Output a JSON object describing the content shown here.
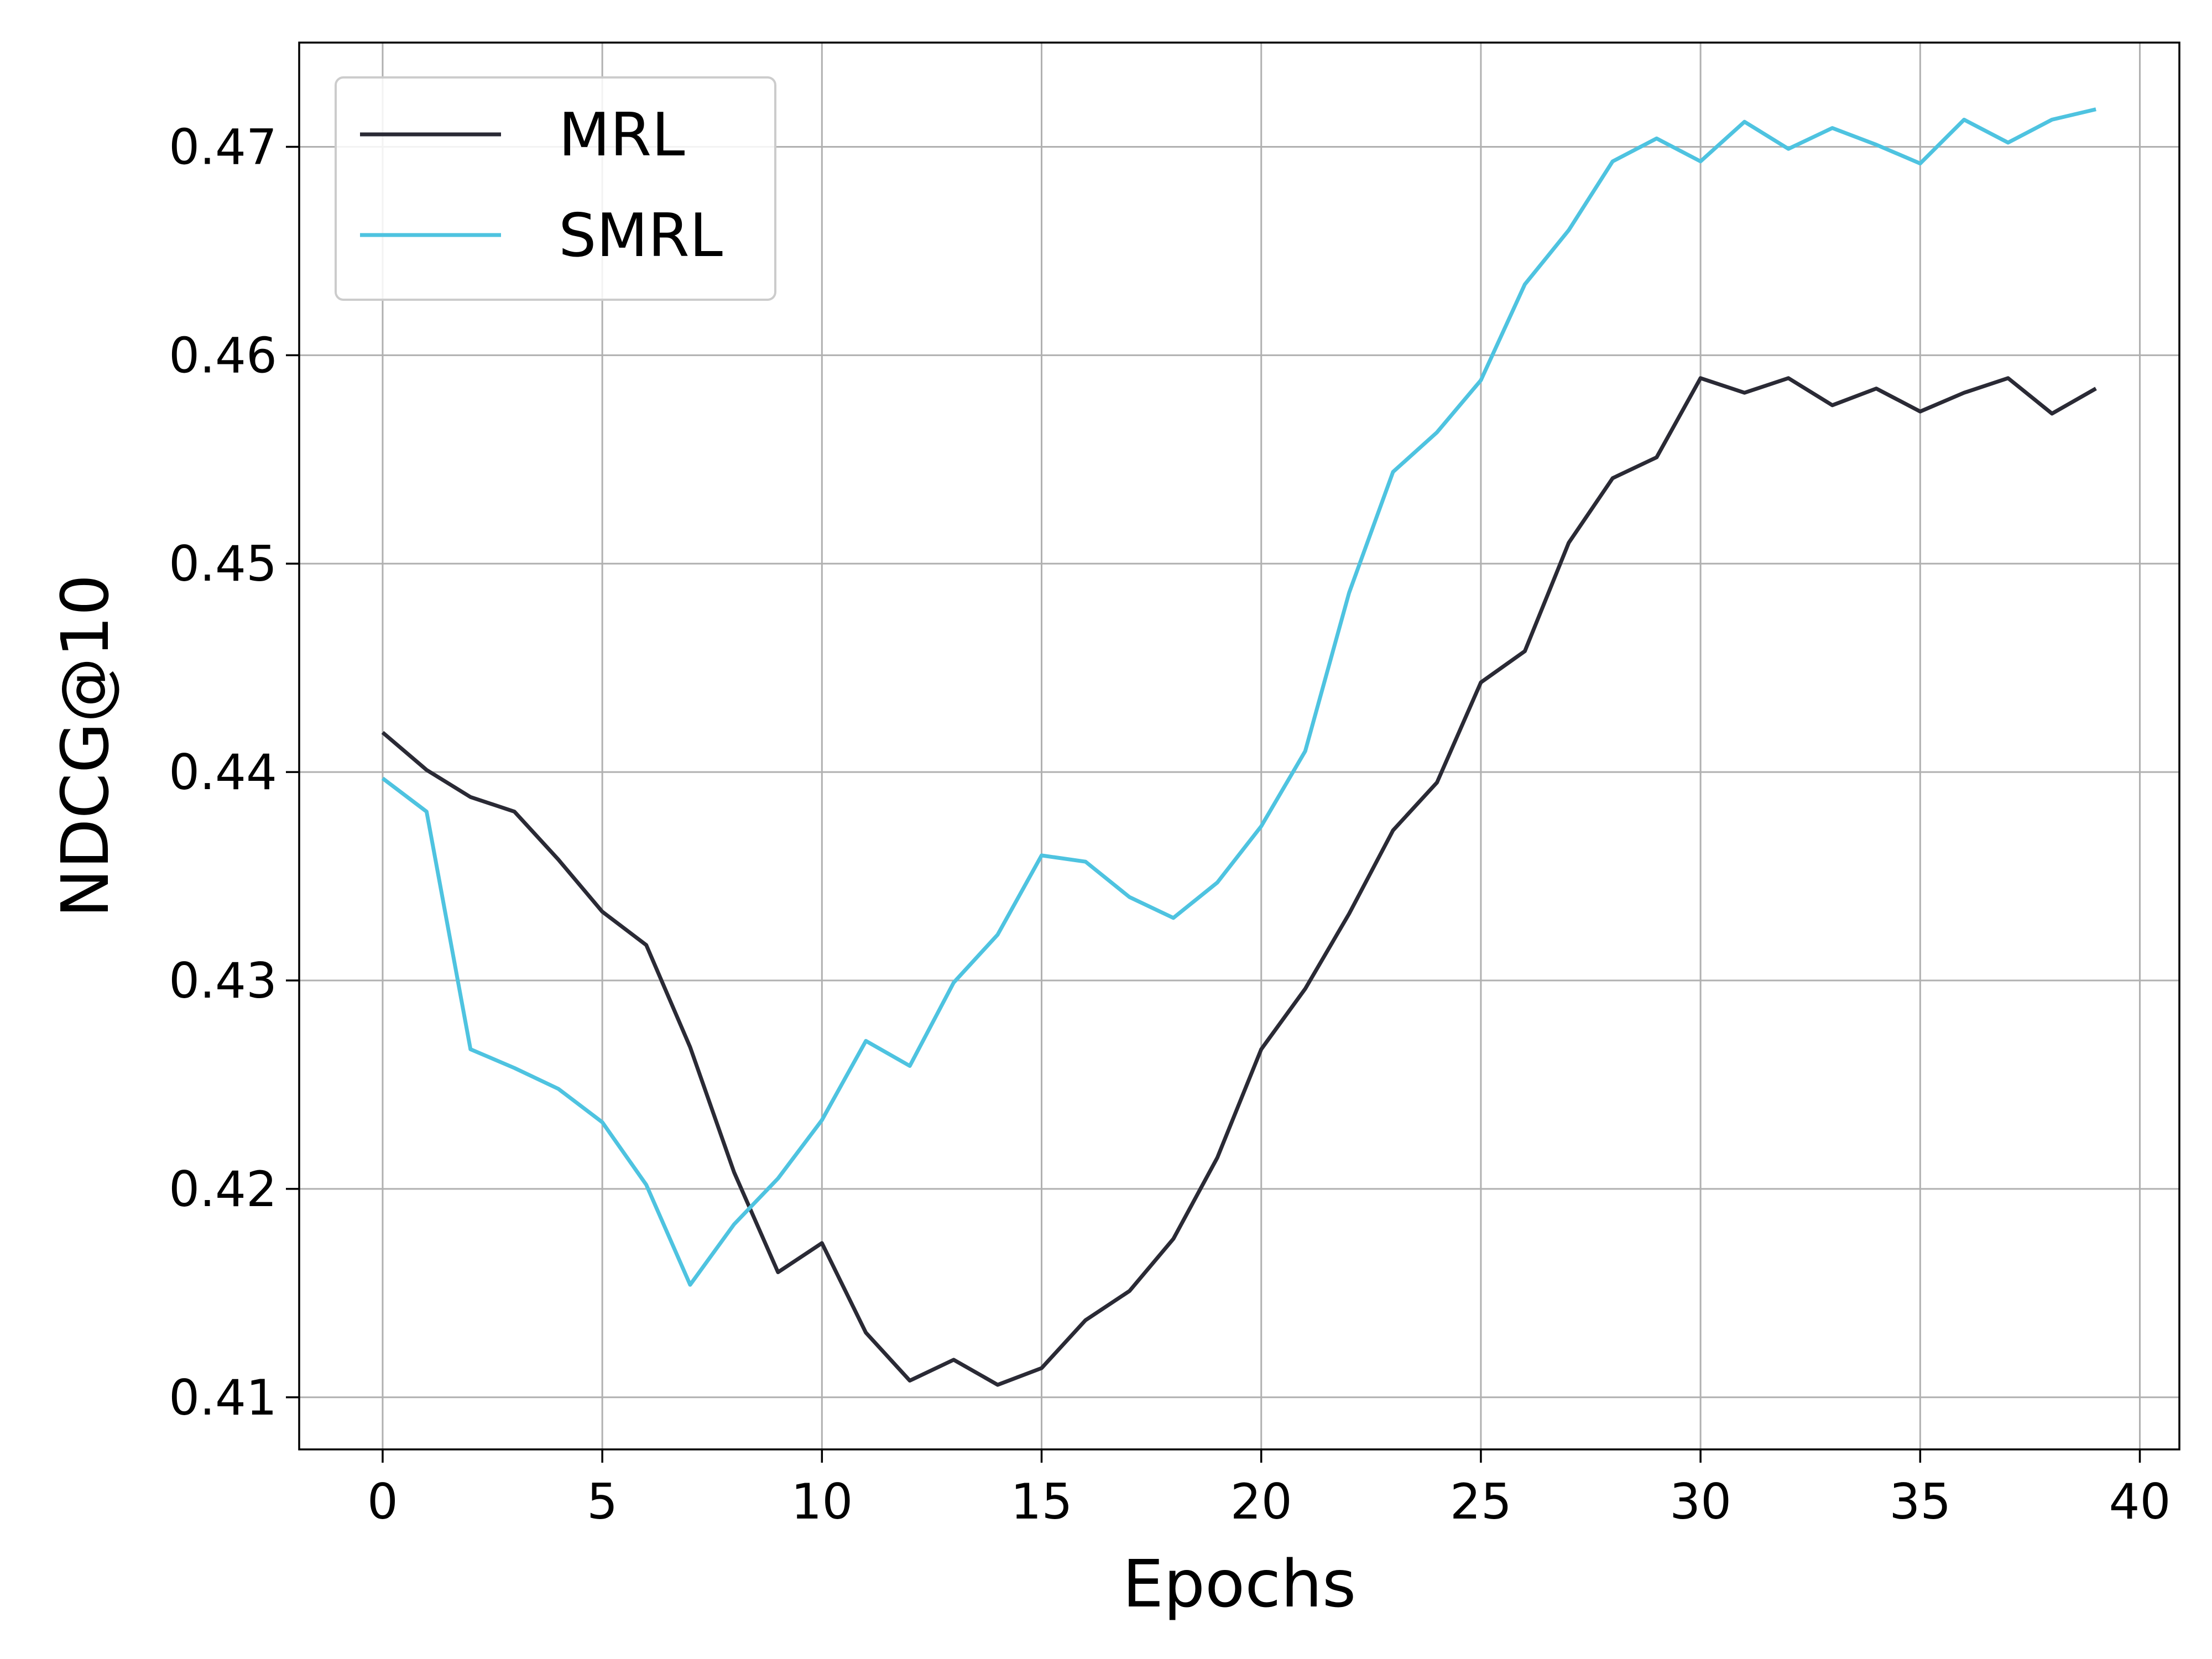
{
  "chart_data": {
    "type": "line",
    "title": "",
    "xlabel": "Epochs",
    "ylabel": "NDCG@10",
    "xlim": [
      -1.9,
      40.9
    ],
    "ylim": [
      0.4075,
      0.475
    ],
    "xticks": [
      0,
      5,
      10,
      15,
      20,
      25,
      30,
      35,
      40
    ],
    "yticks": [
      0.41,
      0.42,
      0.43,
      0.44,
      0.45,
      0.46,
      0.47
    ],
    "xtick_labels": [
      "0",
      "5",
      "10",
      "15",
      "20",
      "25",
      "30",
      "35",
      "40"
    ],
    "ytick_labels": [
      "0.41",
      "0.42",
      "0.43",
      "0.44",
      "0.45",
      "0.46",
      "0.47"
    ],
    "grid": true,
    "legend_position": "top-left",
    "x": [
      0,
      1,
      2,
      3,
      4,
      5,
      6,
      7,
      8,
      9,
      10,
      11,
      12,
      13,
      14,
      15,
      16,
      17,
      18,
      19,
      20,
      21,
      22,
      23,
      24,
      25,
      26,
      27,
      28,
      29,
      30,
      31,
      32,
      33,
      34,
      35,
      36,
      37,
      38,
      39
    ],
    "series": [
      {
        "name": "MRL",
        "color": "#2a2a35",
        "values": [
          0.4419,
          0.4401,
          0.4388,
          0.4381,
          0.4358,
          0.4333,
          0.4317,
          0.4268,
          0.4208,
          0.416,
          0.4174,
          0.4131,
          0.4108,
          0.4118,
          0.4106,
          0.4114,
          0.4137,
          0.4151,
          0.4176,
          0.4215,
          0.4267,
          0.4296,
          0.4332,
          0.4372,
          0.4395,
          0.4443,
          0.4458,
          0.451,
          0.4541,
          0.4551,
          0.4589,
          0.4582,
          0.4589,
          0.4576,
          0.4584,
          0.4573,
          0.4582,
          0.4589,
          0.4572,
          0.4584
        ]
      },
      {
        "name": "SMRL",
        "color": "#4ec3e0",
        "values": [
          0.4397,
          0.4381,
          0.4267,
          0.4258,
          0.4248,
          0.4232,
          0.4202,
          0.4154,
          0.4183,
          0.4205,
          0.4233,
          0.4271,
          0.4259,
          0.4299,
          0.4322,
          0.436,
          0.4357,
          0.434,
          0.433,
          0.4347,
          0.4374,
          0.441,
          0.4486,
          0.4544,
          0.4563,
          0.4588,
          0.4634,
          0.466,
          0.4693,
          0.4704,
          0.4693,
          0.4712,
          0.4699,
          0.4709,
          0.4701,
          0.4692,
          0.4713,
          0.4702,
          0.4713,
          0.4718
        ]
      }
    ]
  }
}
